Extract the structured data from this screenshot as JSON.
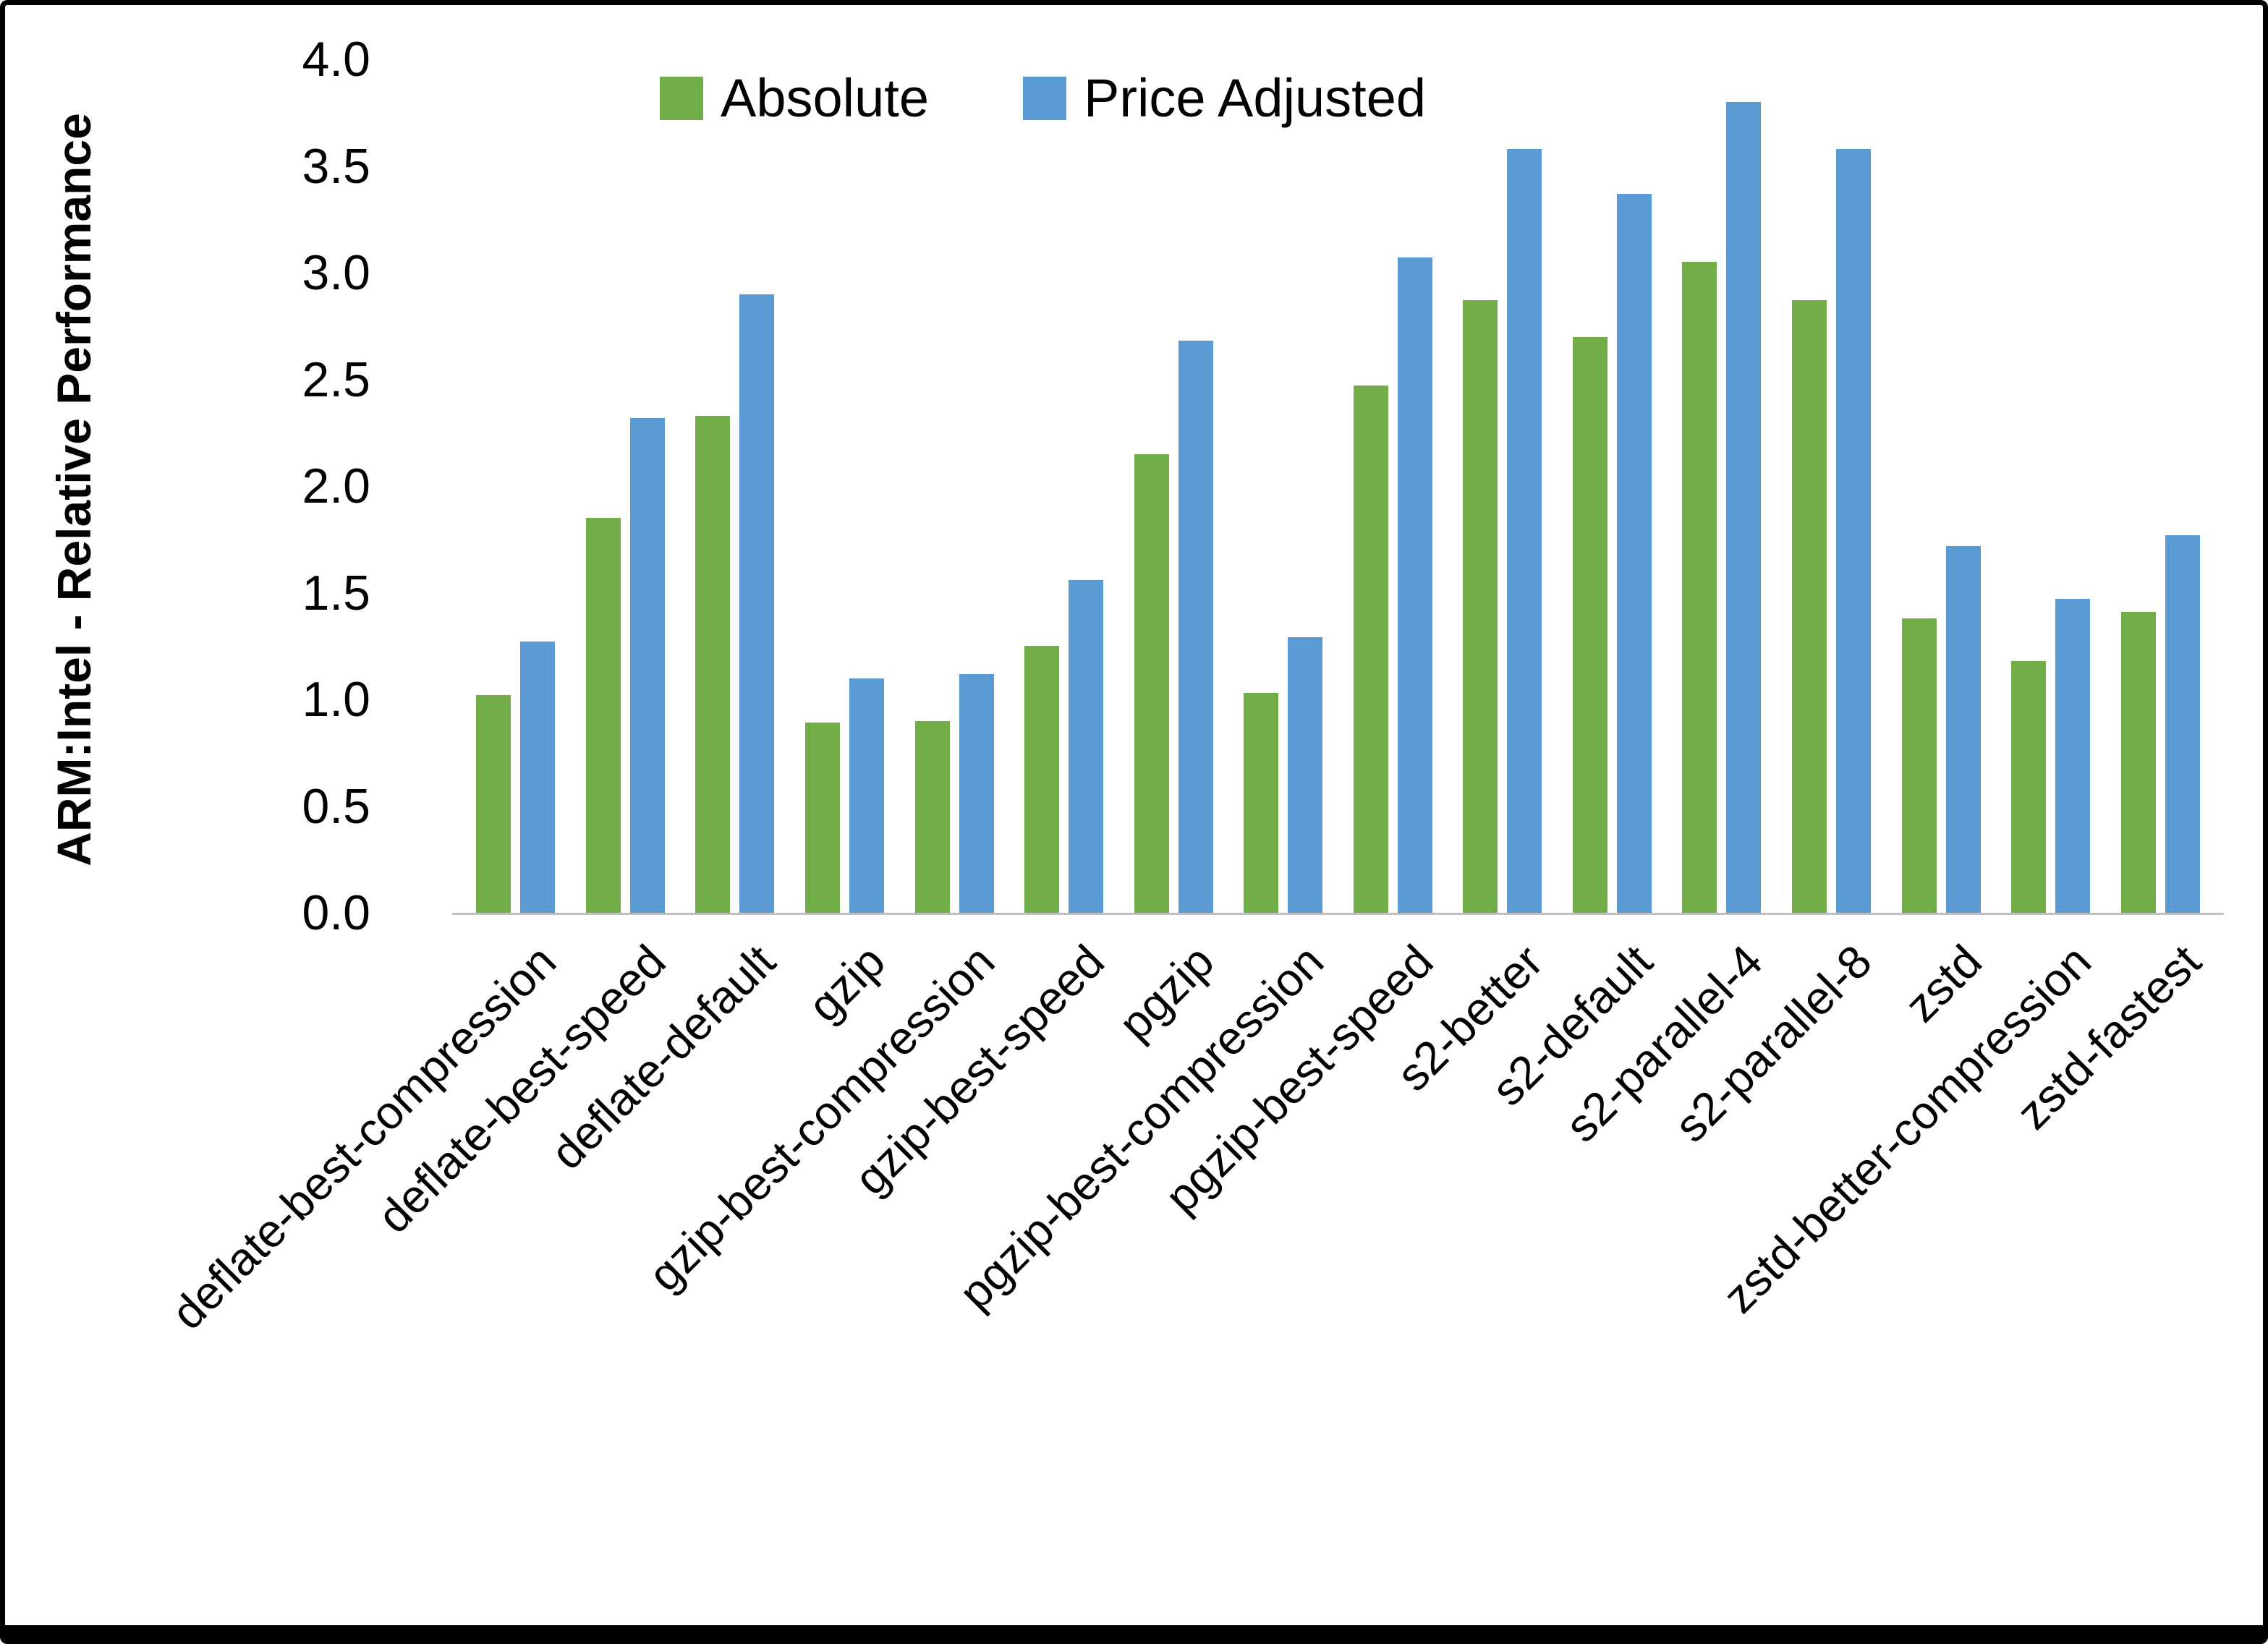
{
  "chart_data": {
    "type": "bar",
    "title": "",
    "xlabel": "",
    "ylabel": "ARM:Intel - Relative Performance",
    "ylim": [
      0.0,
      4.0
    ],
    "ytick_step": 0.5,
    "grid": false,
    "legend_position": "top-inside",
    "categories": [
      "deflate-best-compression",
      "deflate-best-speed",
      "deflate-default",
      "gzip",
      "gzip-best-compression",
      "gzip-best-speed",
      "pgzip",
      "pgzip-best-compression",
      "pgzip-best-speed",
      "s2-better",
      "s2-default",
      "s2-parallel-4",
      "s2-parallel-8",
      "zstd",
      "zstd-better-compression",
      "zstd-fastest"
    ],
    "series": [
      {
        "name": "Absolute",
        "color": "#70AD47",
        "values": [
          1.02,
          1.85,
          2.33,
          0.89,
          0.9,
          1.25,
          2.15,
          1.03,
          2.47,
          2.87,
          2.7,
          3.05,
          2.87,
          1.38,
          1.18,
          1.41
        ]
      },
      {
        "name": "Price Adjusted",
        "color": "#5B9BD5",
        "values": [
          1.27,
          2.32,
          2.9,
          1.1,
          1.12,
          1.56,
          2.68,
          1.29,
          3.07,
          3.58,
          3.37,
          3.8,
          3.58,
          1.72,
          1.47,
          1.77
        ]
      }
    ]
  },
  "colors": {
    "axis_line": "#bfbfbf",
    "text": "#000000",
    "background": "#ffffff"
  }
}
